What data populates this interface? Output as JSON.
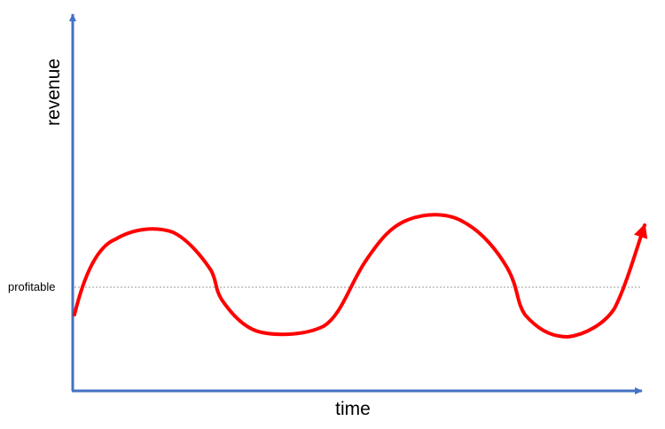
{
  "diagram": {
    "y_axis_label": "revenue",
    "x_axis_label": "time",
    "threshold_label": "profitable"
  },
  "colors": {
    "axis": "#4472C4",
    "curve": "#FF0000",
    "threshold_line": "#999999",
    "text": "#000000"
  }
}
